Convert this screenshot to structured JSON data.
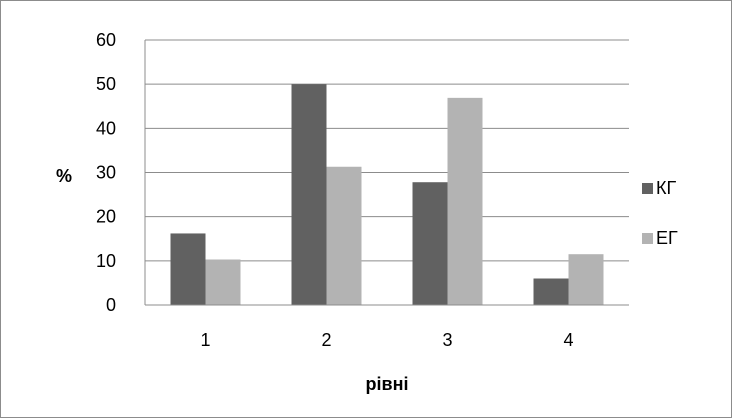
{
  "chart_data": {
    "type": "bar",
    "title": "",
    "xlabel": "рівні",
    "ylabel": "%",
    "categories": [
      "1",
      "2",
      "3",
      "4"
    ],
    "series": [
      {
        "name": "КГ",
        "values": [
          16.2,
          50,
          27.8,
          6
        ],
        "color": "#616161"
      },
      {
        "name": "ЕГ",
        "values": [
          10.3,
          31.3,
          46.9,
          11.5
        ],
        "color": "#b3b3b3"
      }
    ],
    "ylim": [
      0,
      60
    ],
    "yticks": [
      "0",
      "10",
      "20",
      "30",
      "40",
      "50",
      "60"
    ],
    "grid": true,
    "legend_position": "right"
  }
}
